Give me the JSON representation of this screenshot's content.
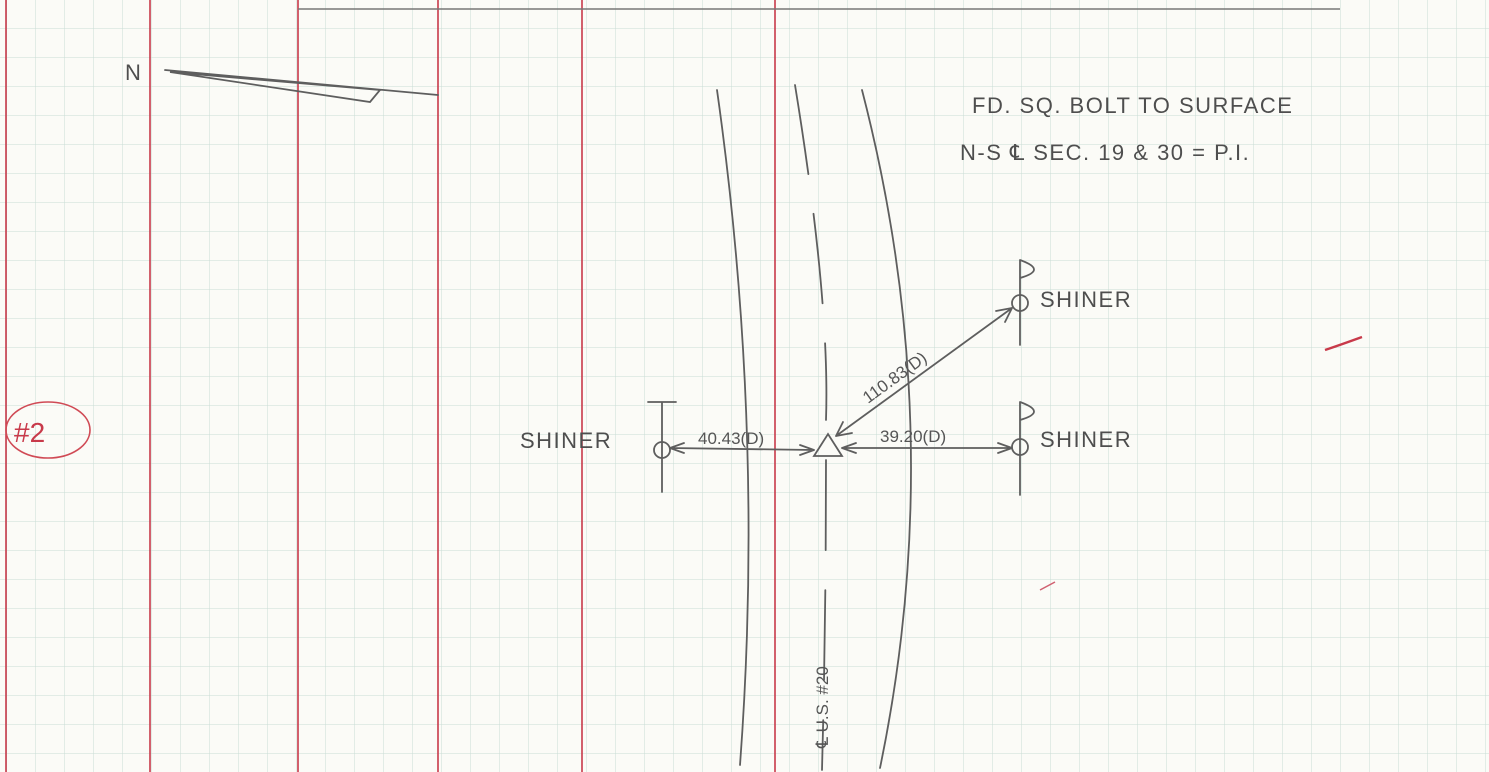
{
  "notebook": {
    "page_number": "#2",
    "north_label": "N",
    "notes": [
      "FD. SQ. BOLT TO SURFACE",
      "N-S ℄ SEC. 19 & 30 = P.I."
    ],
    "sketch": {
      "road_label": "℄ U.S. #20",
      "shiners": [
        "SHINER",
        "SHINER",
        "SHINER"
      ],
      "ties": [
        "40.43(D)",
        "39.20(D)",
        "110.83(D)"
      ]
    }
  }
}
